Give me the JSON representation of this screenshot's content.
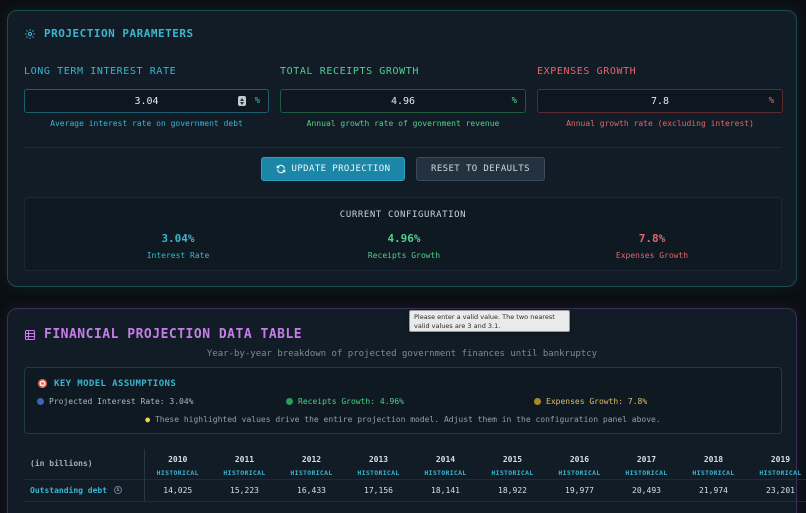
{
  "params": {
    "title": "PROJECTION PARAMETERS",
    "fields": [
      {
        "label": "LONG TERM INTEREST RATE",
        "value": "3.04",
        "unit": "%",
        "hint": "Average interest rate on government debt",
        "color": "#3ab6d0"
      },
      {
        "label": "TOTAL RECEIPTS GROWTH",
        "value": "4.96",
        "unit": "%",
        "hint": "Annual growth rate of government revenue",
        "color": "#4fd08c"
      },
      {
        "label": "EXPENSES GROWTH",
        "value": "7.8",
        "unit": "%",
        "hint": "Annual growth rate (excluding interest)",
        "color": "#e0676b"
      }
    ],
    "update_label": "UPDATE PROJECTION",
    "reset_label": "RESET TO DEFAULTS",
    "config": {
      "title": "CURRENT CONFIGURATION",
      "items": [
        {
          "value": "3.04%",
          "label": "Interest Rate"
        },
        {
          "value": "4.96%",
          "label": "Receipts Growth"
        },
        {
          "value": "7.8%",
          "label": "Expenses Growth"
        }
      ]
    }
  },
  "table_section": {
    "title": "FINANCIAL PROJECTION DATA TABLE",
    "subtitle": "Year-by-year breakdown of projected government finances until bankruptcy",
    "assumptions": {
      "title": "KEY MODEL ASSUMPTIONS",
      "items": [
        {
          "text": "Projected Interest Rate: 3.04%",
          "color": "#3f63b8"
        },
        {
          "text": "Receipts Growth: 4.96%",
          "color": "#2f9a5a"
        },
        {
          "text": "Expenses Growth: 7.8%",
          "color": "#a88a2a"
        }
      ],
      "note": "These highlighted values drive the entire projection model. Adjust them in the configuration panel above."
    },
    "corner_label": "(in billions)",
    "columns": [
      {
        "year": "2010",
        "tag": "HISTORICAL"
      },
      {
        "year": "2011",
        "tag": "HISTORICAL"
      },
      {
        "year": "2012",
        "tag": "HISTORICAL"
      },
      {
        "year": "2013",
        "tag": "HISTORICAL"
      },
      {
        "year": "2014",
        "tag": "HISTORICAL"
      },
      {
        "year": "2015",
        "tag": "HISTORICAL"
      },
      {
        "year": "2016",
        "tag": "HISTORICAL"
      },
      {
        "year": "2017",
        "tag": "HISTORICAL"
      },
      {
        "year": "2018",
        "tag": "HISTORICAL"
      },
      {
        "year": "2019",
        "tag": "HISTORICAL"
      }
    ],
    "rows": [
      {
        "label": "Outstanding debt",
        "values": [
          "14,025",
          "15,223",
          "16,433",
          "17,156",
          "18,141",
          "18,922",
          "19,977",
          "20,493",
          "21,974",
          "23,201"
        ]
      }
    ]
  },
  "tooltip": {
    "text": "Please enter a valid value. The two nearest valid values are 3 and 3.1."
  },
  "icons": {
    "params": "gear-icon",
    "table": "table-icon",
    "assumptions": "target-icon",
    "update": "refresh-icon",
    "note": "lightbulb-icon",
    "info": "info-icon"
  }
}
